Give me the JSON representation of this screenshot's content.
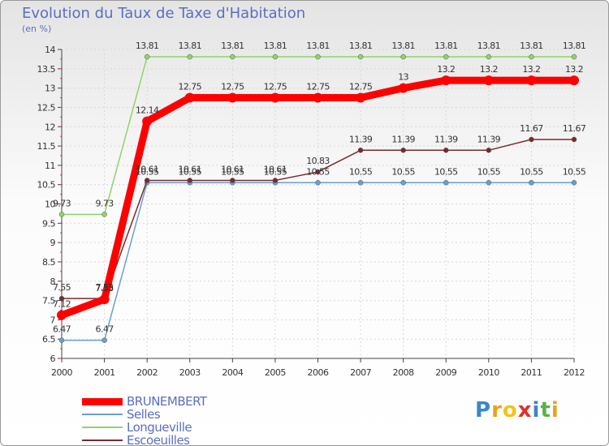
{
  "chart_data": {
    "type": "line",
    "title": "Evolution du Taux de Taxe d'Habitation",
    "unit_label": "(en %)",
    "x": [
      "2000",
      "2001",
      "2002",
      "2003",
      "2004",
      "2005",
      "2006",
      "2007",
      "2008",
      "2009",
      "2010",
      "2011",
      "2012"
    ],
    "ylim": [
      6,
      14
    ],
    "yticks": [
      "6",
      "6.5",
      "7",
      "7.5",
      "8",
      "8.5",
      "9",
      "9.5",
      "10",
      "10.5",
      "11",
      "11.5",
      "12",
      "12.5",
      "13",
      "13.5",
      "14"
    ],
    "series": [
      {
        "name": "BRUNEMBERT",
        "color": "#ff0000",
        "values": [
          7.12,
          7.53,
          12.14,
          12.75,
          12.75,
          12.75,
          12.75,
          12.75,
          13,
          13.2,
          13.2,
          13.2,
          13.2
        ],
        "labels": [
          "7.12",
          "7.53",
          "12.14",
          "12.75",
          "12.75",
          "12.75",
          "12.75",
          "12.75",
          "13",
          "13.2",
          "13.2",
          "13.2",
          "13.2"
        ]
      },
      {
        "name": "Selles",
        "color": "#6a9fd0",
        "values": [
          6.47,
          6.47,
          10.55,
          10.55,
          10.55,
          10.55,
          10.55,
          10.55,
          10.55,
          10.55,
          10.55,
          10.55,
          10.55
        ],
        "labels": [
          "6.47",
          "6.47",
          "10.55",
          "10.55",
          "10.55",
          "10.55",
          "10.55",
          "10.55",
          "10.55",
          "10.55",
          "10.55",
          "10.55",
          "10.55"
        ]
      },
      {
        "name": "Longueville",
        "color": "#8fd468",
        "values": [
          9.73,
          9.73,
          13.81,
          13.81,
          13.81,
          13.81,
          13.81,
          13.81,
          13.81,
          13.81,
          13.81,
          13.81,
          13.81
        ],
        "labels": [
          "9.73",
          "9.73",
          "13.81",
          "13.81",
          "13.81",
          "13.81",
          "13.81",
          "13.81",
          "13.81",
          "13.81",
          "13.81",
          "13.81",
          "13.81"
        ]
      },
      {
        "name": "Escoeuilles",
        "color": "#7a2a2e",
        "values": [
          7.55,
          7.55,
          10.61,
          10.61,
          10.61,
          10.61,
          10.83,
          11.39,
          11.39,
          11.39,
          11.39,
          11.67,
          11.67
        ],
        "labels": [
          "7.55",
          "7.55",
          "10.61",
          "10.61",
          "10.61",
          "10.61",
          "10.83",
          "11.39",
          "11.39",
          "11.39",
          "11.39",
          "11.67",
          "11.67"
        ]
      }
    ]
  },
  "logo": {
    "text": "Proxiti"
  }
}
